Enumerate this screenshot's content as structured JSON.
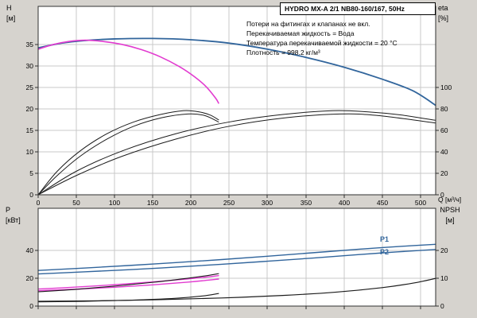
{
  "chart_data": [
    {
      "type": "line",
      "title": "HYDRO MX-A 2/1 NB80-160/167, 50Hz",
      "annotations": [
        "Потери на фитингах и клапанах не вкл.",
        "Перекачиваемая жидкость = Вода",
        "Температура перекачиваемой жидкости = 20 °C",
        "Плотность = 998.2 кг/м³"
      ],
      "x_axis": {
        "label": "Q [м³/ч]",
        "min": 0,
        "max": 520,
        "ticks": [
          0,
          50,
          100,
          150,
          200,
          250,
          300,
          350,
          400,
          450,
          500
        ]
      },
      "y_left": {
        "label_lines": [
          "H",
          "[м]"
        ],
        "min": 0,
        "max": 44,
        "ticks": [
          0,
          5,
          10,
          15,
          20,
          25,
          30,
          35
        ]
      },
      "y_right": {
        "label_lines": [
          "eta",
          "[%]"
        ],
        "min": 0,
        "max": 176,
        "ticks": [
          0,
          20,
          40,
          60,
          80,
          100
        ]
      },
      "grid": true,
      "series": [
        {
          "name": "head-2-pumps",
          "color": "#31659c",
          "width": 1.8,
          "axis": "left",
          "points": [
            [
              0,
              34.3
            ],
            [
              30,
              35.4
            ],
            [
              60,
              36.0
            ],
            [
              100,
              36.4
            ],
            [
              150,
              36.5
            ],
            [
              200,
              36.2
            ],
            [
              250,
              35.4
            ],
            [
              300,
              34.0
            ],
            [
              350,
              32.1
            ],
            [
              400,
              29.8
            ],
            [
              450,
              27.0
            ],
            [
              490,
              24.3
            ],
            [
              520,
              20.9
            ]
          ]
        },
        {
          "name": "head-1-pump",
          "color": "#e23bd0",
          "width": 1.6,
          "axis": "left",
          "points": [
            [
              0,
              34.0
            ],
            [
              20,
              35.1
            ],
            [
              40,
              35.8
            ],
            [
              62,
              36.1
            ],
            [
              85,
              35.8
            ],
            [
              110,
              35.1
            ],
            [
              135,
              33.9
            ],
            [
              160,
              32.2
            ],
            [
              185,
              29.9
            ],
            [
              205,
              27.5
            ],
            [
              220,
              25.2
            ],
            [
              232,
              22.6
            ],
            [
              236,
              21.4
            ]
          ]
        },
        {
          "name": "eff-1-pump-a",
          "color": "#1c1c1c",
          "width": 1,
          "axis": "right",
          "points": [
            [
              0,
              0
            ],
            [
              25,
              22
            ],
            [
              55,
              41
            ],
            [
              90,
              57
            ],
            [
              125,
              68
            ],
            [
              160,
              75
            ],
            [
              190,
              78.5
            ],
            [
              210,
              77.5
            ],
            [
              225,
              74.5
            ],
            [
              236,
              70
            ]
          ]
        },
        {
          "name": "eff-1-pump-b",
          "color": "#1c1c1c",
          "width": 1,
          "axis": "right",
          "points": [
            [
              0,
              0
            ],
            [
              25,
              18
            ],
            [
              55,
              36
            ],
            [
              90,
              52
            ],
            [
              125,
              64
            ],
            [
              162,
              72
            ],
            [
              196,
              75.5
            ],
            [
              218,
              74
            ],
            [
              236,
              68
            ]
          ]
        },
        {
          "name": "eff-2-pumps-a",
          "color": "#1c1c1c",
          "width": 1,
          "axis": "right",
          "points": [
            [
              0,
              0
            ],
            [
              50,
              22
            ],
            [
              110,
              41
            ],
            [
              180,
              57
            ],
            [
              250,
              68
            ],
            [
              320,
              75
            ],
            [
              385,
              78.5
            ],
            [
              430,
              77.5
            ],
            [
              475,
              74.5
            ],
            [
              520,
              69.5
            ]
          ]
        },
        {
          "name": "eff-2-pumps-b",
          "color": "#1c1c1c",
          "width": 1,
          "axis": "right",
          "points": [
            [
              0,
              0
            ],
            [
              50,
              18
            ],
            [
              110,
              36
            ],
            [
              180,
              52
            ],
            [
              250,
              64
            ],
            [
              325,
              72
            ],
            [
              395,
              75.5
            ],
            [
              445,
              74
            ],
            [
              520,
              67
            ]
          ]
        }
      ]
    },
    {
      "type": "line",
      "x_axis": {
        "label": "",
        "min": 0,
        "max": 520,
        "ticks": [
          0,
          50,
          100,
          150,
          200,
          250,
          300,
          350,
          400,
          450,
          500
        ]
      },
      "y_left": {
        "label_lines": [
          "P",
          "[кВт]"
        ],
        "min": 0,
        "max": 70,
        "ticks": [
          0,
          20,
          40
        ]
      },
      "y_right": {
        "label_lines": [
          "NPSH",
          "[м]"
        ],
        "min": 0,
        "max": 35,
        "ticks": [
          0,
          10,
          20
        ]
      },
      "curve_labels": {
        "p1": "P1",
        "p2": "P2"
      },
      "grid": true,
      "series": [
        {
          "name": "power-p1-2-pumps",
          "color": "#31659c",
          "width": 1.4,
          "axis": "left",
          "points": [
            [
              0,
              25.5
            ],
            [
              60,
              27.2
            ],
            [
              120,
              29.1
            ],
            [
              180,
              31.1
            ],
            [
              240,
              33.3
            ],
            [
              300,
              35.7
            ],
            [
              360,
              38.2
            ],
            [
              420,
              40.7
            ],
            [
              470,
              42.6
            ],
            [
              520,
              44.2
            ]
          ]
        },
        {
          "name": "power-p2-2-pumps",
          "color": "#31659c",
          "width": 1.4,
          "axis": "left",
          "points": [
            [
              0,
              23.0
            ],
            [
              60,
              24.5
            ],
            [
              120,
              26.1
            ],
            [
              180,
              27.9
            ],
            [
              240,
              29.9
            ],
            [
              300,
              32.1
            ],
            [
              360,
              34.4
            ],
            [
              420,
              36.9
            ],
            [
              470,
              38.8
            ],
            [
              520,
              40.5
            ]
          ]
        },
        {
          "name": "power-p1-1-pump",
          "color": "#e23bd0",
          "width": 1.4,
          "axis": "left",
          "points": [
            [
              0,
              12.2
            ],
            [
              50,
              13.6
            ],
            [
              100,
              15.3
            ],
            [
              150,
              17.3
            ],
            [
              195,
              19.4
            ],
            [
              222,
              20.9
            ],
            [
              236,
              21.8
            ]
          ]
        },
        {
          "name": "power-p2-1-pump",
          "color": "#e23bd0",
          "width": 1.4,
          "axis": "left",
          "points": [
            [
              0,
              11.0
            ],
            [
              50,
              12.1
            ],
            [
              100,
              13.5
            ],
            [
              150,
              15.2
            ],
            [
              195,
              17.1
            ],
            [
              222,
              18.5
            ],
            [
              236,
              19.3
            ]
          ]
        },
        {
          "name": "power-1-pump-shaft",
          "color": "#1c1c1c",
          "width": 1.1,
          "axis": "left",
          "points": [
            [
              0,
              10.2
            ],
            [
              50,
              12.0
            ],
            [
              100,
              14.3
            ],
            [
              150,
              17.0
            ],
            [
              195,
              19.9
            ],
            [
              222,
              21.9
            ],
            [
              236,
              23.2
            ]
          ]
        },
        {
          "name": "npsh-2-pumps",
          "color": "#1c1c1c",
          "width": 1.2,
          "axis": "right",
          "points": [
            [
              0,
              1.7
            ],
            [
              80,
              1.9
            ],
            [
              160,
              2.3
            ],
            [
              240,
              2.9
            ],
            [
              320,
              3.8
            ],
            [
              390,
              5.0
            ],
            [
              450,
              6.6
            ],
            [
              490,
              8.2
            ],
            [
              520,
              9.9
            ]
          ]
        },
        {
          "name": "npsh-1-pump",
          "color": "#1c1c1c",
          "width": 1.1,
          "axis": "right",
          "points": [
            [
              0,
              1.5
            ],
            [
              60,
              1.7
            ],
            [
              120,
              2.1
            ],
            [
              180,
              2.8
            ],
            [
              215,
              3.6
            ],
            [
              236,
              4.5
            ]
          ]
        }
      ]
    }
  ],
  "colors": {
    "accent_blue": "#31659c",
    "accent_magenta": "#e23bd0",
    "grid": "#c9c9c9",
    "frame": "#303030",
    "panel_bg": "#d6d3ce"
  }
}
